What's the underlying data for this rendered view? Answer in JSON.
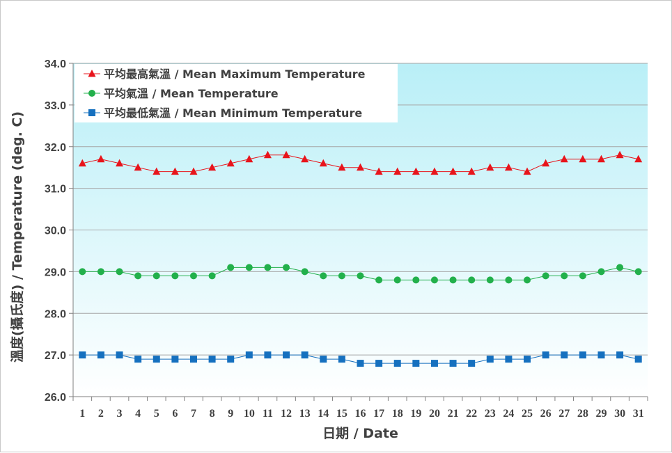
{
  "chart_data": {
    "type": "line",
    "title": "",
    "xlabel": "日期 / Date",
    "ylabel": "溫度(攝氏度) / Temperature (deg. C)",
    "ylim": [
      26.0,
      34.0
    ],
    "ytick_step": 1.0,
    "categories": [
      "1",
      "2",
      "3",
      "4",
      "5",
      "6",
      "7",
      "8",
      "9",
      "10",
      "11",
      "12",
      "13",
      "14",
      "15",
      "16",
      "17",
      "18",
      "19",
      "20",
      "21",
      "22",
      "23",
      "24",
      "25",
      "26",
      "27",
      "28",
      "29",
      "30",
      "31"
    ],
    "legend_position": "top-left",
    "series": [
      {
        "name": "平均最高氣溫 / Mean Maximum Temperature",
        "marker": "triangle",
        "color": "#e8141b",
        "values": [
          31.6,
          31.7,
          31.6,
          31.5,
          31.4,
          31.4,
          31.4,
          31.5,
          31.6,
          31.7,
          31.8,
          31.8,
          31.7,
          31.6,
          31.5,
          31.5,
          31.4,
          31.4,
          31.4,
          31.4,
          31.4,
          31.4,
          31.5,
          31.5,
          31.4,
          31.6,
          31.7,
          31.7,
          31.7,
          31.8,
          31.7
        ]
      },
      {
        "name": "平均氣溫 / Mean Temperature",
        "marker": "circle",
        "color": "#22b04b",
        "values": [
          29.0,
          29.0,
          29.0,
          28.9,
          28.9,
          28.9,
          28.9,
          28.9,
          29.1,
          29.1,
          29.1,
          29.1,
          29.0,
          28.9,
          28.9,
          28.9,
          28.8,
          28.8,
          28.8,
          28.8,
          28.8,
          28.8,
          28.8,
          28.8,
          28.8,
          28.9,
          28.9,
          28.9,
          29.0,
          29.1,
          29.0
        ]
      },
      {
        "name": "平均最低氣溫 / Mean Minimum Temperature",
        "marker": "square",
        "color": "#1570bf",
        "values": [
          27.0,
          27.0,
          27.0,
          26.9,
          26.9,
          26.9,
          26.9,
          26.9,
          26.9,
          27.0,
          27.0,
          27.0,
          27.0,
          26.9,
          26.9,
          26.8,
          26.8,
          26.8,
          26.8,
          26.8,
          26.8,
          26.8,
          26.9,
          26.9,
          26.9,
          27.0,
          27.0,
          27.0,
          27.0,
          27.0,
          26.9
        ]
      }
    ]
  },
  "colors": {
    "plot_top": "#b9eff7",
    "plot_bottom": "#ffffff",
    "grid": "#a6a6a6",
    "axis": "#7f7f7f"
  }
}
